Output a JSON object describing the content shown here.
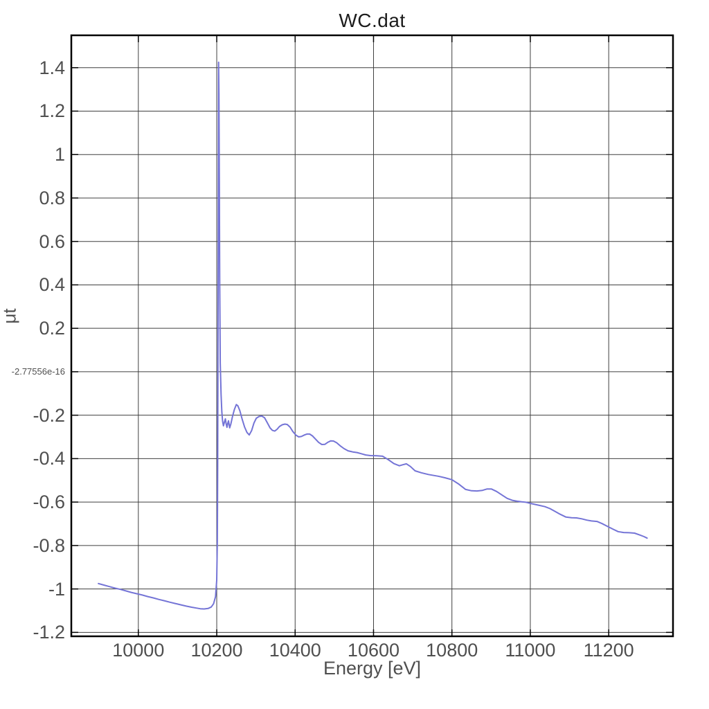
{
  "chart": {
    "title": "WC.dat",
    "xlabel": "Energy [eV]",
    "ylabel": "μt"
  },
  "chart_data": {
    "type": "line",
    "title": "WC.dat",
    "xlabel": "Energy [eV]",
    "ylabel": "μt",
    "series_name": "WC.dat",
    "series_color": "#7474d6",
    "grid": true,
    "grid_color": "#3f3f3f",
    "border_color": "#000000",
    "tick_label_color": "#4f4f4f",
    "legend_position": "none",
    "xlim": [
      9829,
      11364
    ],
    "ylim": [
      -1.218,
      1.549
    ],
    "x_ticks": {
      "labels": [
        "10000",
        "10200",
        "10400",
        "10600",
        "10800",
        "11000",
        "11200"
      ],
      "values": [
        10000,
        10200,
        10400,
        10600,
        10800,
        11000,
        11200
      ]
    },
    "y_ticks": {
      "labels": [
        "1.4",
        "1.2",
        "1",
        "0.8",
        "0.6",
        "0.4",
        "0.2",
        "-2.77556e-16",
        "-0.2",
        "-0.4",
        "-0.6",
        "-0.8",
        "-1",
        "-1.2"
      ],
      "values": [
        1.4,
        1.2,
        1.0,
        0.8,
        0.6,
        0.4,
        0.2,
        0,
        -0.2,
        -0.4,
        -0.6,
        -0.8,
        -1.0,
        -1.2
      ]
    },
    "points": [
      [
        9898,
        -0.975
      ],
      [
        9912,
        -0.982
      ],
      [
        9926,
        -0.989
      ],
      [
        9940,
        -0.996
      ],
      [
        9954,
        -1.002
      ],
      [
        9968,
        -1.009
      ],
      [
        9982,
        -1.016
      ],
      [
        9996,
        -1.022
      ],
      [
        10010,
        -1.028
      ],
      [
        10024,
        -1.035
      ],
      [
        10038,
        -1.041
      ],
      [
        10052,
        -1.048
      ],
      [
        10066,
        -1.054
      ],
      [
        10080,
        -1.061
      ],
      [
        10094,
        -1.067
      ],
      [
        10108,
        -1.073
      ],
      [
        10122,
        -1.079
      ],
      [
        10136,
        -1.084
      ],
      [
        10148,
        -1.088
      ],
      [
        10158,
        -1.091
      ],
      [
        10168,
        -1.092
      ],
      [
        10178,
        -1.09
      ],
      [
        10186,
        -1.083
      ],
      [
        10192,
        -1.068
      ],
      [
        10197,
        -1.035
      ],
      [
        10200,
        -0.96
      ],
      [
        10201.5,
        -0.78
      ],
      [
        10202.5,
        -0.43
      ],
      [
        10203.2,
        0.05
      ],
      [
        10203.8,
        0.6
      ],
      [
        10204.3,
        1.05
      ],
      [
        10204.8,
        1.425
      ],
      [
        10205.6,
        1.28
      ],
      [
        10206.6,
        0.86
      ],
      [
        10207.6,
        0.43
      ],
      [
        10209,
        0.04
      ],
      [
        10211,
        -0.105
      ],
      [
        10213,
        -0.185
      ],
      [
        10215,
        -0.228
      ],
      [
        10217,
        -0.249
      ],
      [
        10219.5,
        -0.232
      ],
      [
        10222,
        -0.217
      ],
      [
        10224,
        -0.239
      ],
      [
        10226,
        -0.256
      ],
      [
        10228,
        -0.238
      ],
      [
        10230,
        -0.226
      ],
      [
        10231.5,
        -0.243
      ],
      [
        10233,
        -0.258
      ],
      [
        10236,
        -0.241
      ],
      [
        10240,
        -0.207
      ],
      [
        10245,
        -0.174
      ],
      [
        10250,
        -0.151
      ],
      [
        10254,
        -0.157
      ],
      [
        10259,
        -0.179
      ],
      [
        10265,
        -0.219
      ],
      [
        10271,
        -0.254
      ],
      [
        10277,
        -0.279
      ],
      [
        10283,
        -0.291
      ],
      [
        10289,
        -0.271
      ],
      [
        10295,
        -0.236
      ],
      [
        10301,
        -0.214
      ],
      [
        10308,
        -0.206
      ],
      [
        10315,
        -0.204
      ],
      [
        10322,
        -0.212
      ],
      [
        10329,
        -0.235
      ],
      [
        10336,
        -0.258
      ],
      [
        10342,
        -0.27
      ],
      [
        10348,
        -0.273
      ],
      [
        10354,
        -0.265
      ],
      [
        10360,
        -0.252
      ],
      [
        10367,
        -0.244
      ],
      [
        10374,
        -0.241
      ],
      [
        10380,
        -0.243
      ],
      [
        10387,
        -0.255
      ],
      [
        10394,
        -0.275
      ],
      [
        10402,
        -0.292
      ],
      [
        10409,
        -0.3
      ],
      [
        10416,
        -0.298
      ],
      [
        10424,
        -0.291
      ],
      [
        10430,
        -0.287
      ],
      [
        10437,
        -0.287
      ],
      [
        10444,
        -0.295
      ],
      [
        10452,
        -0.31
      ],
      [
        10460,
        -0.325
      ],
      [
        10468,
        -0.335
      ],
      [
        10476,
        -0.334
      ],
      [
        10484,
        -0.324
      ],
      [
        10491,
        -0.318
      ],
      [
        10498,
        -0.319
      ],
      [
        10506,
        -0.327
      ],
      [
        10515,
        -0.341
      ],
      [
        10525,
        -0.354
      ],
      [
        10535,
        -0.364
      ],
      [
        10547,
        -0.369
      ],
      [
        10558,
        -0.372
      ],
      [
        10568,
        -0.377
      ],
      [
        10580,
        -0.383
      ],
      [
        10592,
        -0.386
      ],
      [
        10608,
        -0.387
      ],
      [
        10623,
        -0.389
      ],
      [
        10638,
        -0.405
      ],
      [
        10652,
        -0.423
      ],
      [
        10666,
        -0.433
      ],
      [
        10675,
        -0.428
      ],
      [
        10684,
        -0.424
      ],
      [
        10694,
        -0.436
      ],
      [
        10706,
        -0.456
      ],
      [
        10722,
        -0.465
      ],
      [
        10740,
        -0.473
      ],
      [
        10765,
        -0.481
      ],
      [
        10782,
        -0.488
      ],
      [
        10800,
        -0.497
      ],
      [
        10818,
        -0.518
      ],
      [
        10835,
        -0.542
      ],
      [
        10850,
        -0.548
      ],
      [
        10864,
        -0.549
      ],
      [
        10878,
        -0.546
      ],
      [
        10889,
        -0.54
      ],
      [
        10901,
        -0.54
      ],
      [
        10914,
        -0.551
      ],
      [
        10928,
        -0.568
      ],
      [
        10941,
        -0.583
      ],
      [
        10954,
        -0.592
      ],
      [
        10966,
        -0.596
      ],
      [
        10978,
        -0.599
      ],
      [
        10989,
        -0.601
      ],
      [
        11000,
        -0.606
      ],
      [
        11015,
        -0.612
      ],
      [
        11037,
        -0.621
      ],
      [
        11050,
        -0.63
      ],
      [
        11062,
        -0.642
      ],
      [
        11076,
        -0.656
      ],
      [
        11091,
        -0.669
      ],
      [
        11105,
        -0.672
      ],
      [
        11118,
        -0.673
      ],
      [
        11131,
        -0.677
      ],
      [
        11144,
        -0.683
      ],
      [
        11156,
        -0.687
      ],
      [
        11170,
        -0.689
      ],
      [
        11183,
        -0.699
      ],
      [
        11196,
        -0.711
      ],
      [
        11210,
        -0.724
      ],
      [
        11224,
        -0.736
      ],
      [
        11238,
        -0.74
      ],
      [
        11252,
        -0.741
      ],
      [
        11266,
        -0.743
      ],
      [
        11280,
        -0.752
      ],
      [
        11290,
        -0.759
      ],
      [
        11298,
        -0.766
      ]
    ]
  }
}
